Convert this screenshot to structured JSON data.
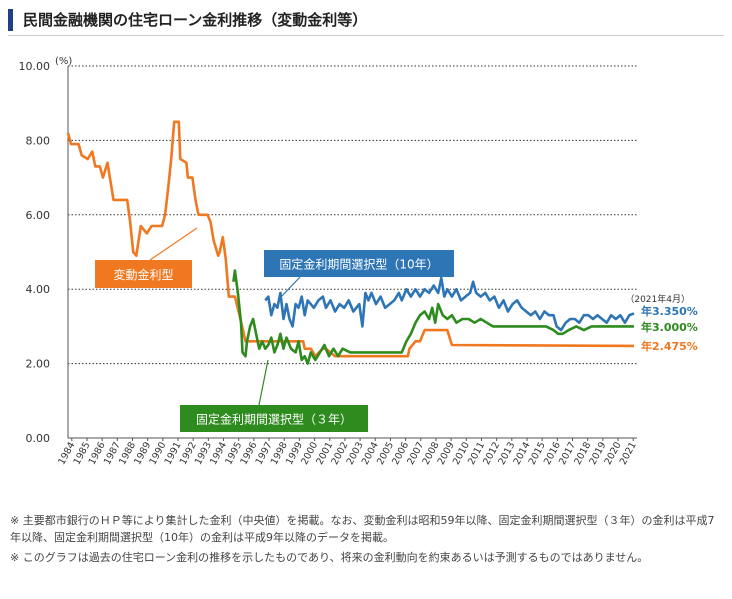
{
  "title": "民間金融機関の住宅ローン金利推移（変動金利等）",
  "chart_data": {
    "type": "line",
    "ylabel_unit": "(%)",
    "ylim": [
      0,
      10
    ],
    "yticks": [
      "0.00",
      "2.00",
      "4.00",
      "6.00",
      "8.00",
      "10.00"
    ],
    "grid": "horizontal dotted",
    "xlabels": [
      "1984",
      "1985",
      "1986",
      "1987",
      "1988",
      "1989",
      "1990",
      "1991",
      "1992",
      "1993",
      "1994",
      "1995",
      "1996",
      "1997",
      "1998",
      "1999",
      "2000",
      "2001",
      "2002",
      "2003",
      "2004",
      "2005",
      "2006",
      "2007",
      "2008",
      "2009",
      "2010",
      "2011",
      "2012",
      "2013",
      "2014",
      "2015",
      "2016",
      "2017",
      "2018",
      "2019",
      "2020",
      "2021"
    ],
    "as_of": "（2021年4月）",
    "series": [
      {
        "name": "変動金利型",
        "color": "#f07820",
        "end_label": "年2.475%",
        "points": [
          [
            1984.0,
            8.2
          ],
          [
            1984.2,
            7.9
          ],
          [
            1984.7,
            7.9
          ],
          [
            1984.9,
            7.6
          ],
          [
            1985.3,
            7.5
          ],
          [
            1985.6,
            7.7
          ],
          [
            1985.8,
            7.3
          ],
          [
            1986.1,
            7.3
          ],
          [
            1986.3,
            7.0
          ],
          [
            1986.6,
            7.4
          ],
          [
            1986.8,
            6.9
          ],
          [
            1987.0,
            6.4
          ],
          [
            1987.9,
            6.4
          ],
          [
            1988.1,
            5.8
          ],
          [
            1988.3,
            5.0
          ],
          [
            1988.5,
            4.9
          ],
          [
            1988.8,
            5.7
          ],
          [
            1989.2,
            5.5
          ],
          [
            1989.5,
            5.7
          ],
          [
            1990.2,
            5.7
          ],
          [
            1990.4,
            6.0
          ],
          [
            1990.6,
            6.7
          ],
          [
            1990.8,
            7.5
          ],
          [
            1991.0,
            8.5
          ],
          [
            1991.3,
            8.5
          ],
          [
            1991.4,
            7.5
          ],
          [
            1991.8,
            7.4
          ],
          [
            1991.9,
            7.0
          ],
          [
            1992.2,
            7.0
          ],
          [
            1992.4,
            6.4
          ],
          [
            1992.6,
            6.0
          ],
          [
            1993.2,
            6.0
          ],
          [
            1993.4,
            5.8
          ],
          [
            1993.6,
            5.3
          ],
          [
            1993.9,
            4.9
          ],
          [
            1994.0,
            5.0
          ],
          [
            1994.2,
            5.4
          ],
          [
            1994.4,
            4.8
          ],
          [
            1994.6,
            3.8
          ],
          [
            1995.0,
            3.8
          ],
          [
            1995.3,
            3.3
          ],
          [
            1995.7,
            2.6
          ],
          [
            1996.0,
            2.6
          ],
          [
            1999.5,
            2.6
          ],
          [
            1999.6,
            2.4
          ],
          [
            2000.0,
            2.4
          ],
          [
            2000.3,
            2.2
          ],
          [
            2000.8,
            2.4
          ],
          [
            2001.0,
            2.4
          ],
          [
            2001.6,
            2.2
          ],
          [
            2006.4,
            2.2
          ],
          [
            2006.5,
            2.4
          ],
          [
            2006.9,
            2.6
          ],
          [
            2007.2,
            2.6
          ],
          [
            2007.5,
            2.9
          ],
          [
            2009.0,
            2.9
          ],
          [
            2009.3,
            2.5
          ],
          [
            2021.3,
            2.475
          ]
        ]
      },
      {
        "name": "固定金利期間選択型（10年）",
        "color": "#2e75b6",
        "end_label": "年3.350%",
        "points": [
          [
            1997.0,
            3.7
          ],
          [
            1997.2,
            3.8
          ],
          [
            1997.4,
            3.3
          ],
          [
            1997.6,
            3.6
          ],
          [
            1997.8,
            3.5
          ],
          [
            1998.0,
            3.9
          ],
          [
            1998.2,
            3.2
          ],
          [
            1998.4,
            3.6
          ],
          [
            1998.6,
            3.2
          ],
          [
            1998.8,
            3.0
          ],
          [
            1999.0,
            3.6
          ],
          [
            1999.2,
            3.5
          ],
          [
            1999.4,
            3.8
          ],
          [
            1999.6,
            3.3
          ],
          [
            1999.8,
            3.7
          ],
          [
            2000.0,
            3.6
          ],
          [
            2000.2,
            3.5
          ],
          [
            2000.5,
            3.7
          ],
          [
            2000.8,
            3.8
          ],
          [
            2001.0,
            3.5
          ],
          [
            2001.3,
            3.7
          ],
          [
            2001.6,
            3.4
          ],
          [
            2001.9,
            3.6
          ],
          [
            2002.2,
            3.5
          ],
          [
            2002.5,
            3.7
          ],
          [
            2002.8,
            3.4
          ],
          [
            2003.0,
            3.5
          ],
          [
            2003.2,
            3.6
          ],
          [
            2003.4,
            3.0
          ],
          [
            2003.6,
            3.9
          ],
          [
            2003.8,
            3.7
          ],
          [
            2004.0,
            3.9
          ],
          [
            2004.3,
            3.6
          ],
          [
            2004.6,
            3.8
          ],
          [
            2004.9,
            3.5
          ],
          [
            2005.2,
            3.6
          ],
          [
            2005.5,
            3.7
          ],
          [
            2005.8,
            3.9
          ],
          [
            2006.0,
            3.7
          ],
          [
            2006.3,
            4.0
          ],
          [
            2006.6,
            3.8
          ],
          [
            2006.9,
            4.0
          ],
          [
            2007.2,
            3.8
          ],
          [
            2007.5,
            4.0
          ],
          [
            2007.8,
            3.9
          ],
          [
            2008.1,
            4.1
          ],
          [
            2008.4,
            3.9
          ],
          [
            2008.6,
            4.3
          ],
          [
            2008.8,
            3.8
          ],
          [
            2009.0,
            4.0
          ],
          [
            2009.3,
            3.8
          ],
          [
            2009.6,
            4.0
          ],
          [
            2009.9,
            3.7
          ],
          [
            2010.2,
            3.8
          ],
          [
            2010.5,
            3.9
          ],
          [
            2010.7,
            4.2
          ],
          [
            2010.9,
            3.9
          ],
          [
            2011.2,
            3.8
          ],
          [
            2011.5,
            3.9
          ],
          [
            2011.8,
            3.7
          ],
          [
            2012.1,
            3.8
          ],
          [
            2012.4,
            3.5
          ],
          [
            2012.7,
            3.7
          ],
          [
            2013.0,
            3.4
          ],
          [
            2013.3,
            3.6
          ],
          [
            2013.6,
            3.7
          ],
          [
            2013.9,
            3.5
          ],
          [
            2014.2,
            3.4
          ],
          [
            2014.5,
            3.3
          ],
          [
            2014.8,
            3.4
          ],
          [
            2015.1,
            3.2
          ],
          [
            2015.4,
            3.4
          ],
          [
            2015.7,
            3.3
          ],
          [
            2016.0,
            3.3
          ],
          [
            2016.2,
            3.0
          ],
          [
            2016.5,
            2.9
          ],
          [
            2016.8,
            3.1
          ],
          [
            2017.1,
            3.2
          ],
          [
            2017.4,
            3.2
          ],
          [
            2017.7,
            3.1
          ],
          [
            2018.0,
            3.3
          ],
          [
            2018.3,
            3.3
          ],
          [
            2018.6,
            3.2
          ],
          [
            2018.9,
            3.3
          ],
          [
            2019.2,
            3.2
          ],
          [
            2019.5,
            3.1
          ],
          [
            2019.8,
            3.3
          ],
          [
            2020.1,
            3.2
          ],
          [
            2020.4,
            3.3
          ],
          [
            2020.7,
            3.1
          ],
          [
            2021.0,
            3.3
          ],
          [
            2021.3,
            3.35
          ]
        ]
      },
      {
        "name": "固定金利期間選択型（３年）",
        "color": "#2e8b1e",
        "end_label": "年3.000%",
        "points": [
          [
            1994.9,
            4.2
          ],
          [
            1995.0,
            4.5
          ],
          [
            1995.2,
            3.9
          ],
          [
            1995.4,
            3.1
          ],
          [
            1995.5,
            2.3
          ],
          [
            1995.7,
            2.2
          ],
          [
            1995.8,
            2.6
          ],
          [
            1996.0,
            3.0
          ],
          [
            1996.2,
            3.2
          ],
          [
            1996.4,
            2.8
          ],
          [
            1996.6,
            2.4
          ],
          [
            1996.8,
            2.6
          ],
          [
            1997.0,
            2.4
          ],
          [
            1997.2,
            2.5
          ],
          [
            1997.4,
            2.7
          ],
          [
            1997.6,
            2.3
          ],
          [
            1997.8,
            2.5
          ],
          [
            1998.0,
            2.8
          ],
          [
            1998.2,
            2.4
          ],
          [
            1998.4,
            2.7
          ],
          [
            1998.7,
            2.4
          ],
          [
            1999.0,
            2.3
          ],
          [
            1999.2,
            2.6
          ],
          [
            1999.4,
            2.1
          ],
          [
            1999.6,
            2.2
          ],
          [
            1999.8,
            2.0
          ],
          [
            2000.0,
            2.3
          ],
          [
            2000.3,
            2.1
          ],
          [
            2000.6,
            2.3
          ],
          [
            2000.9,
            2.5
          ],
          [
            2001.2,
            2.2
          ],
          [
            2001.5,
            2.4
          ],
          [
            2001.8,
            2.2
          ],
          [
            2002.1,
            2.4
          ],
          [
            2002.6,
            2.3
          ],
          [
            2006.0,
            2.3
          ],
          [
            2006.3,
            2.6
          ],
          [
            2006.6,
            2.8
          ],
          [
            2006.9,
            3.1
          ],
          [
            2007.2,
            3.3
          ],
          [
            2007.5,
            3.4
          ],
          [
            2007.8,
            3.2
          ],
          [
            2008.0,
            3.5
          ],
          [
            2008.2,
            3.1
          ],
          [
            2008.4,
            3.6
          ],
          [
            2008.7,
            3.3
          ],
          [
            2009.0,
            3.2
          ],
          [
            2009.3,
            3.3
          ],
          [
            2009.6,
            3.1
          ],
          [
            2010.0,
            3.2
          ],
          [
            2010.4,
            3.2
          ],
          [
            2010.8,
            3.1
          ],
          [
            2011.2,
            3.2
          ],
          [
            2011.6,
            3.1
          ],
          [
            2012.0,
            3.0
          ],
          [
            2012.5,
            3.0
          ],
          [
            2013.0,
            3.0
          ],
          [
            2013.5,
            3.0
          ],
          [
            2014.0,
            3.0
          ],
          [
            2014.5,
            3.0
          ],
          [
            2015.0,
            3.0
          ],
          [
            2015.5,
            3.0
          ],
          [
            2016.0,
            2.9
          ],
          [
            2016.3,
            2.8
          ],
          [
            2016.6,
            2.8
          ],
          [
            2017.0,
            2.9
          ],
          [
            2017.5,
            3.0
          ],
          [
            2018.0,
            2.9
          ],
          [
            2018.5,
            3.0
          ],
          [
            2019.0,
            3.0
          ],
          [
            2019.5,
            3.0
          ],
          [
            2020.0,
            3.0
          ],
          [
            2020.5,
            3.0
          ],
          [
            2021.3,
            3.0
          ]
        ]
      }
    ],
    "callouts": [
      {
        "label": "変動金利型",
        "series": 0
      },
      {
        "label": "固定金利期間選択型（10年）",
        "series": 1
      },
      {
        "label": "固定金利期間選択型（３年）",
        "series": 2
      }
    ]
  },
  "notes": [
    "※ 主要都市銀行のＨＰ等により集計した金利（中央値）を掲載。なお、変動金利は昭和59年以降、固定金利期間選択型（３年）の金利は平成7年以降、固定金利期間選択型（10年）の金利は平成9年以降のデータを掲載。",
    "※ このグラフは過去の住宅ローン金利の推移を示したものであり、将来の金利動向を約束あるいは予測するものではありません。"
  ]
}
